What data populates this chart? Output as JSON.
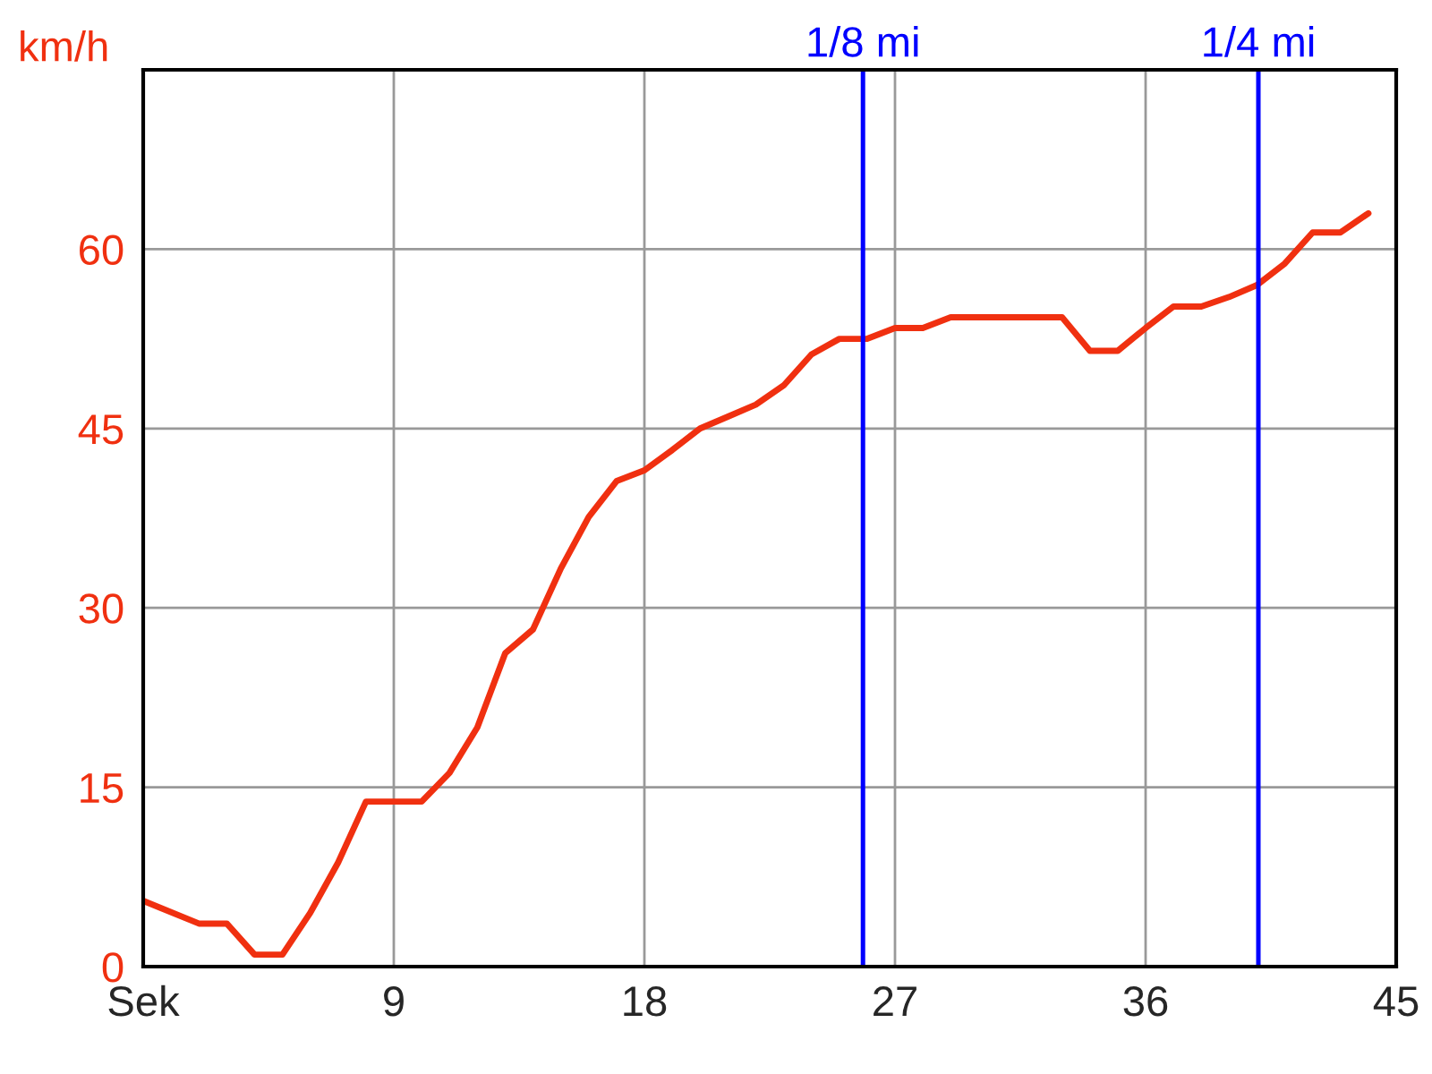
{
  "chart_data": {
    "type": "line",
    "ylabel": "km/h",
    "x": [
      0,
      2,
      3,
      4,
      5,
      6,
      7,
      8,
      10,
      11,
      12,
      13,
      14,
      15,
      16,
      17,
      18,
      19,
      20,
      21,
      22,
      23,
      24,
      25,
      26,
      27,
      28,
      29,
      33,
      34,
      35,
      36,
      37,
      38,
      39,
      40,
      41,
      42,
      43,
      44
    ],
    "series": [
      {
        "color": "#f03010",
        "values": [
          5.5,
          3.6,
          3.6,
          1,
          1,
          4.5,
          8.7,
          13.8,
          13.8,
          16.2,
          20,
          26.2,
          28.2,
          33.3,
          37.6,
          40.6,
          41.5,
          43.2,
          45,
          46,
          47,
          48.6,
          51.2,
          52.5,
          52.5,
          53.4,
          53.4,
          54.3,
          54.3,
          51.5,
          51.5,
          53.4,
          55.2,
          55.2,
          56,
          57,
          58.8,
          61.4,
          61.4,
          63
        ]
      }
    ],
    "xlim": [
      0,
      45
    ],
    "xticks": [
      {
        "value": 0,
        "label": "Sek"
      },
      9,
      18,
      27,
      36,
      45
    ],
    "ylim": [
      0,
      75
    ],
    "yticks": [
      0,
      15,
      30,
      45,
      60
    ],
    "ref_lines": [
      {
        "axis": "x",
        "value": 25.85,
        "label": "1/8 mi",
        "color": "#0000ff"
      },
      {
        "axis": "x",
        "value": 40.05,
        "label": "1/4 mi",
        "color": "#0000ff"
      }
    ],
    "grid": true,
    "legend": false,
    "marker": "none",
    "line_style": "solid"
  }
}
